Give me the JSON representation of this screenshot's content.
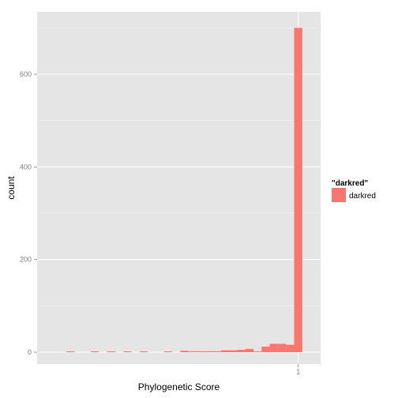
{
  "chart_data": {
    "type": "bar",
    "xlabel": "Phylogenetic Score",
    "ylabel": "count",
    "ylim": [
      -30,
      735
    ],
    "yticks": [
      0,
      200,
      400,
      600
    ],
    "xticks": [
      "1"
    ],
    "x_tick_bin_index": 30.5,
    "legend": {
      "title": "\"darkred\"",
      "label": "darkred",
      "position": "right"
    },
    "bar_color": "#F8766D",
    "panel_color": "#E5E5E5",
    "grid": true,
    "bins_count": 32,
    "values": [
      0,
      0,
      1,
      0,
      0,
      1,
      0,
      1,
      0,
      1,
      0,
      1,
      0,
      0,
      1,
      0,
      3,
      2,
      2,
      2,
      2,
      4,
      4,
      5,
      7,
      1,
      12,
      18,
      18,
      16,
      700,
      0
    ]
  }
}
